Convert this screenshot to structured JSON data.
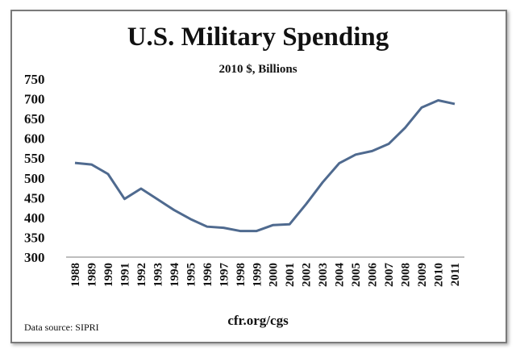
{
  "chart_data": {
    "type": "line",
    "title": "U.S. Military Spending",
    "subtitle": "2010 $, Billions",
    "xlabel": "",
    "ylabel": "",
    "x": [
      "1988",
      "1989",
      "1990",
      "1991",
      "1992",
      "1993",
      "1994",
      "1995",
      "1996",
      "1997",
      "1998",
      "1999",
      "2000",
      "2001",
      "2002",
      "2003",
      "2004",
      "2005",
      "2006",
      "2007",
      "2008",
      "2009",
      "2010",
      "2011"
    ],
    "series": [
      {
        "values": [
          538,
          534,
          510,
          447,
          473,
          446,
          419,
          396,
          377,
          374,
          366,
          366,
          381,
          383,
          434,
          489,
          537,
          559,
          568,
          586,
          627,
          678,
          696,
          687
        ],
        "color": "#4f6a8f"
      }
    ],
    "ylim": [
      300,
      750
    ],
    "yticks": [
      "300",
      "350",
      "400",
      "450",
      "500",
      "550",
      "600",
      "650",
      "700",
      "750"
    ],
    "grid": false,
    "legend": "none"
  },
  "footer": {
    "source": "Data source: SIPRI",
    "site": "cfr.org/cgs"
  }
}
